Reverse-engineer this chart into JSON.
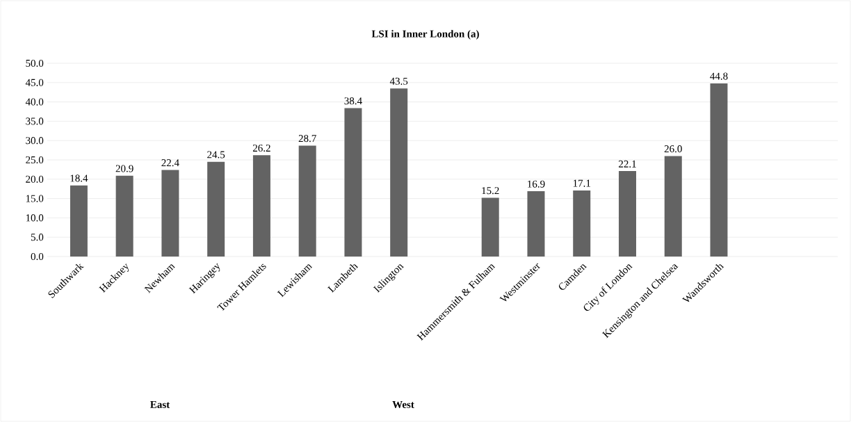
{
  "chart_data": {
    "type": "bar",
    "title": "LSI in Inner London (a)",
    "categories": [
      "Southwark",
      "Hackney",
      "Newham",
      "Haringey",
      "Tower Hamlets",
      "Lewisham",
      "Lambeth",
      "Islington",
      null,
      "Hammersmith & Fulham",
      "Westminster",
      "Camden",
      "City of London",
      "Kensington and Chelsea",
      "Wandsworth"
    ],
    "values": [
      18.4,
      20.9,
      22.4,
      24.5,
      26.2,
      28.7,
      38.4,
      43.5,
      null,
      15.2,
      16.9,
      17.1,
      22.1,
      26.0,
      44.8
    ],
    "color": "#636363",
    "ylim": [
      0,
      50
    ],
    "yticks": [
      {
        "value": 0,
        "label": "0.0"
      },
      {
        "value": 5,
        "label": "5.0"
      },
      {
        "value": 10,
        "label": "10.0"
      },
      {
        "value": 15,
        "label": "15.0"
      },
      {
        "value": 20,
        "label": "20.0"
      },
      {
        "value": 25,
        "label": "25.0"
      },
      {
        "value": 30,
        "label": "30.0"
      },
      {
        "value": 35,
        "label": "35.0"
      },
      {
        "value": 40,
        "label": "40.0"
      },
      {
        "value": 45,
        "label": "45.0"
      },
      {
        "value": 50,
        "label": "50.0"
      }
    ],
    "grid": "y",
    "value_labels": [
      "18.4",
      "20.9",
      "22.4",
      "24.5",
      "26.2",
      "28.7",
      "38.4",
      "43.5",
      null,
      "15.2",
      "16.9",
      "17.1",
      "22.1",
      "26.0",
      "44.8"
    ],
    "annotations": [
      "East",
      "West"
    ]
  }
}
